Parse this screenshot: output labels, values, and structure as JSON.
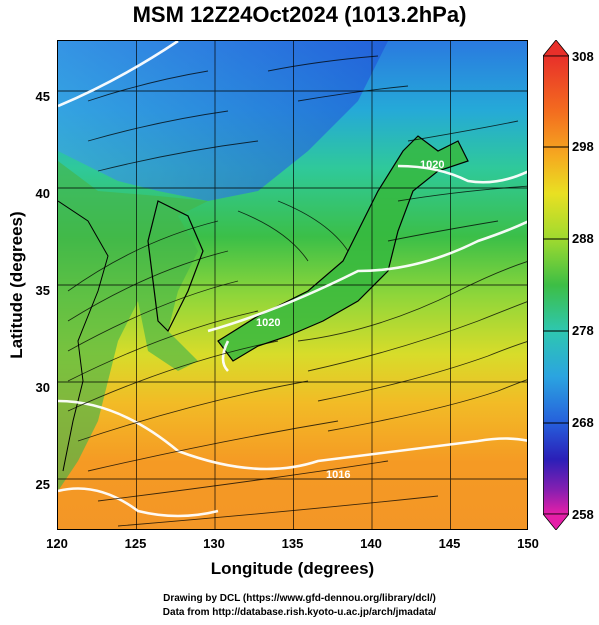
{
  "title": "MSM 12Z24Oct2024 (1013.2hPa)",
  "xlabel": "Longitude (degrees)",
  "ylabel": "Latitude  (degrees)",
  "x_ticks": [
    "120",
    "125",
    "130",
    "135",
    "140",
    "145",
    "150"
  ],
  "y_ticks": [
    "45",
    "40",
    "35",
    "30",
    "25"
  ],
  "colorbar_ticks": [
    "308",
    "298",
    "288",
    "278",
    "268",
    "258"
  ],
  "contour_labels": [
    "1020",
    "1020",
    "1016"
  ],
  "credits": {
    "line1": "Drawing by DCL (https://www.gfd-dennou.org/library/dcl/)",
    "line2": "Data from http://database.rish.kyoto-u.ac.jp/arch/jmadata/"
  },
  "chart_data": {
    "type": "heatmap",
    "title": "MSM 12Z24Oct2024 (1013.2hPa)",
    "xlabel": "Longitude (degrees)",
    "ylabel": "Latitude  (degrees)",
    "xlim": [
      120,
      150
    ],
    "ylim": [
      22.4,
      47.6
    ],
    "x_ticks": [
      120,
      125,
      130,
      135,
      140,
      145,
      150
    ],
    "y_ticks": [
      25,
      30,
      35,
      40,
      45
    ],
    "colorbar": {
      "min": 258,
      "max": 308,
      "ticks": [
        258,
        268,
        278,
        288,
        298,
        308
      ]
    },
    "grid": true,
    "overlays": [
      "streamlines",
      "isobar contours (white)"
    ]
  }
}
